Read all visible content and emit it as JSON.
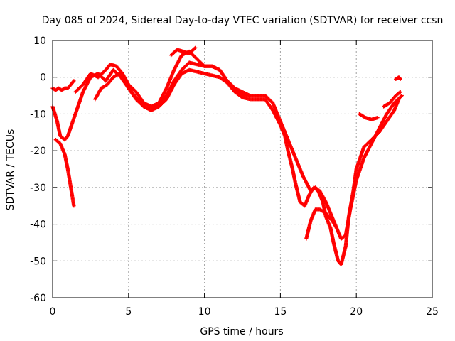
{
  "chart_data": {
    "type": "scatter",
    "title": "Day 085 of 2024, Sidereal Day-to-day VTEC variation (SDTVAR) for receiver ccsn",
    "xlabel": "GPS time / hours",
    "ylabel": "SDTVAR / TECUs",
    "xlim": [
      0,
      25
    ],
    "ylim": [
      -60,
      10
    ],
    "xticks": [
      "0",
      "5",
      "10",
      "15",
      "20",
      "25"
    ],
    "yticks": [
      "10",
      "0",
      "-10",
      "-20",
      "-30",
      "-40",
      "-50",
      "-60"
    ],
    "grid": true,
    "marker": "plus",
    "color": "#ff0000",
    "series": [
      {
        "x": [
          0.0,
          0.2,
          0.4,
          0.6,
          0.8,
          1.0,
          1.2,
          1.4
        ],
        "y": [
          -3,
          -3.5,
          -3,
          -3.5,
          -3,
          -3,
          -2,
          -1
        ]
      },
      {
        "x": [
          0.0,
          0.3,
          0.5,
          0.8,
          1.0,
          1.5,
          2.0,
          2.5,
          3.0,
          3.5,
          4.0,
          4.5,
          5.0,
          5.5,
          6.0,
          6.5,
          7.0,
          7.5,
          8.0,
          8.5,
          9.0,
          9.5,
          10.0,
          10.5,
          11.0,
          11.5,
          12.0,
          12.5,
          13.0,
          13.5,
          14.0,
          14.5,
          15.0,
          15.3,
          15.5,
          15.8,
          16.0,
          16.3,
          16.6,
          16.9,
          17.2,
          17.5,
          17.8,
          18.0,
          18.3,
          18.5,
          18.8,
          19.0,
          19.3,
          19.5,
          19.8,
          20.0,
          20.5,
          21.0,
          21.5,
          22.0,
          22.5,
          22.8
        ],
        "y": [
          -8,
          -12,
          -16,
          -17,
          -16,
          -10,
          -4,
          0,
          1,
          -1,
          2,
          0,
          -3,
          -6,
          -8,
          -9,
          -8,
          -6,
          -2,
          1,
          2,
          1.5,
          1,
          0.5,
          0,
          -1.5,
          -4,
          -5.5,
          -6,
          -6,
          -6,
          -9,
          -13,
          -16,
          -20,
          -25,
          -29,
          -34,
          -35,
          -32,
          -30,
          -31,
          -34,
          -38,
          -41,
          -45,
          -50,
          -51,
          -46,
          -38,
          -31,
          -25,
          -19,
          -17,
          -15,
          -12,
          -9,
          -6
        ]
      },
      {
        "x": [
          0.2,
          0.5,
          0.8,
          1.0,
          1.2,
          1.4
        ],
        "y": [
          -17,
          -18,
          -21,
          -25,
          -30,
          -35
        ]
      },
      {
        "x": [
          1.5,
          2.0,
          2.5,
          3.0,
          3.5,
          3.8,
          4.2,
          4.6,
          5.0,
          5.5,
          6.0,
          6.5,
          7.0,
          7.5,
          8.0,
          8.5,
          9.0,
          9.5,
          10.0,
          10.5,
          11.0,
          11.5,
          12.0,
          12.5,
          13.0,
          13.5,
          14.0,
          14.5,
          15.0,
          15.5,
          16.0,
          16.5,
          17.0,
          17.3,
          17.6,
          18.0,
          18.3,
          18.6,
          19.0,
          19.3,
          19.6,
          20.0,
          20.5,
          21.0,
          21.5,
          22.0,
          22.5,
          23.0
        ],
        "y": [
          -4,
          -2,
          1,
          0,
          2,
          3.5,
          3,
          1,
          -2,
          -4,
          -7,
          -8,
          -7,
          -3,
          2,
          6,
          7,
          5,
          3,
          3,
          2,
          -1,
          -3,
          -5,
          -5,
          -5,
          -5,
          -7,
          -12,
          -17,
          -22,
          -27,
          -31,
          -30,
          -31,
          -34,
          -37,
          -40,
          -44,
          -43,
          -36,
          -28,
          -22,
          -18,
          -14,
          -10,
          -7,
          -5
        ]
      },
      {
        "x": [
          2.8,
          3.2,
          3.6,
          4.0,
          4.4,
          4.8,
          5.2,
          5.6,
          6.0,
          6.5,
          7.0,
          7.5,
          8.0,
          8.5,
          9.0,
          9.5,
          10.0,
          10.5,
          11.0,
          11.5,
          12.0,
          12.5,
          13.0
        ],
        "y": [
          -6,
          -3,
          -2,
          0,
          1,
          -0.5,
          -4,
          -6,
          -8,
          -9,
          -7,
          -5,
          -1,
          2,
          4,
          3.5,
          3,
          3,
          2,
          -1,
          -3,
          -4,
          -5
        ]
      },
      {
        "x": [
          16.7,
          17.0,
          17.3,
          17.6,
          18.0,
          18.4,
          18.7
        ],
        "y": [
          -44,
          -39,
          -36,
          -36,
          -37,
          -39,
          -41
        ]
      },
      {
        "x": [
          7.8,
          8.2,
          8.6,
          9.0,
          9.4
        ],
        "y": [
          6,
          7.5,
          7,
          6.5,
          8
        ]
      },
      {
        "x": [
          20.2,
          20.6,
          21.0,
          21.4
        ],
        "y": [
          -10,
          -11,
          -11.5,
          -11
        ]
      },
      {
        "x": [
          21.8,
          22.2,
          22.6,
          22.9
        ],
        "y": [
          -8,
          -7,
          -5,
          -4
        ]
      },
      {
        "x": [
          22.6,
          22.8,
          22.9
        ],
        "y": [
          -0.5,
          0,
          -0.5
        ]
      }
    ]
  }
}
